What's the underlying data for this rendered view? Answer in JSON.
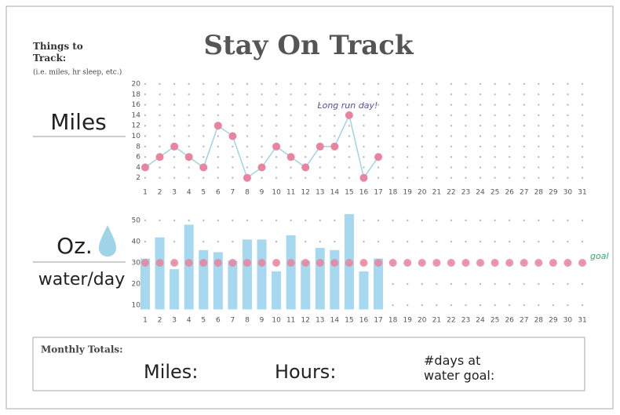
{
  "header": {
    "title": "Stay On Track",
    "side_title": "Things to Track:",
    "side_note": "(i.e. miles, hr sleep, etc.)"
  },
  "chart_data": [
    {
      "type": "line",
      "label": "Miles",
      "annotation": "Long run day!",
      "x": [
        1,
        2,
        3,
        4,
        5,
        6,
        7,
        8,
        9,
        10,
        11,
        12,
        13,
        14,
        15,
        16,
        17,
        18,
        19,
        20,
        21,
        22,
        23,
        24,
        25,
        26,
        27,
        28,
        29,
        30,
        31
      ],
      "values": [
        4,
        6,
        8,
        6,
        4,
        12,
        10,
        2,
        4,
        8,
        6,
        4,
        8,
        8,
        14,
        2,
        6,
        null,
        null,
        null,
        null,
        null,
        null,
        null,
        null,
        null,
        null,
        null,
        null,
        null,
        null
      ],
      "color": "#9fd3e8",
      "marker_color": "#e8849f",
      "xlim": [
        1,
        31
      ],
      "ylim": [
        0,
        20
      ],
      "yticks": [
        2,
        4,
        6,
        8,
        10,
        12,
        14,
        16,
        18,
        20
      ],
      "grid": true
    },
    {
      "type": "bar",
      "label": "Oz.",
      "sublabel": "water/day",
      "x": [
        1,
        2,
        3,
        4,
        5,
        6,
        7,
        8,
        9,
        10,
        11,
        12,
        13,
        14,
        15,
        16,
        17,
        18,
        19,
        20,
        21,
        22,
        23,
        24,
        25,
        26,
        27,
        28,
        29,
        30,
        31
      ],
      "values": [
        32,
        42,
        27,
        48,
        36,
        35,
        31,
        41,
        41,
        26,
        43,
        31,
        37,
        36,
        53,
        26,
        32,
        null,
        null,
        null,
        null,
        null,
        null,
        null,
        null,
        null,
        null,
        null,
        null,
        null,
        null
      ],
      "color": "#a6d8ef",
      "goal": {
        "label": "goal",
        "color": "#e8849f",
        "values": [
          30,
          30,
          30,
          30,
          30,
          30,
          30,
          30,
          30,
          30,
          30,
          30,
          30,
          30,
          30,
          30,
          30,
          30,
          30,
          30,
          30,
          30,
          30,
          30,
          30,
          30,
          30,
          30,
          30,
          30,
          30
        ]
      },
      "xlim": [
        1,
        31
      ],
      "ylim": [
        8,
        55
      ],
      "yticks": [
        10,
        20,
        30,
        40,
        50
      ],
      "grid": true
    }
  ],
  "totals": {
    "title": "Monthly Totals:",
    "fields": [
      "Miles:",
      "Hours:",
      "#days at water goal:"
    ]
  }
}
